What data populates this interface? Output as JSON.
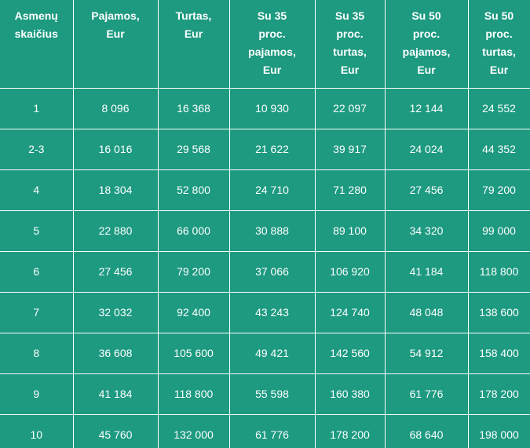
{
  "table": {
    "headers": [
      "Asmenų\nskaičius",
      "Pajamos,\nEur",
      "Turtas,\nEur",
      "Su 35\nproc.\npajamos,\nEur",
      "Su 35\nproc.\nturtas,\nEur",
      "Su 50\nproc.\npajamos,\nEur",
      "Su 50\nproc.\nturtas,\nEur"
    ],
    "rows": [
      [
        "1",
        "8 096",
        "16 368",
        "10 930",
        "22 097",
        "12 144",
        "24 552"
      ],
      [
        "2-3",
        "16 016",
        "29 568",
        "21 622",
        "39 917",
        "24 024",
        "44 352"
      ],
      [
        "4",
        "18 304",
        "52 800",
        "24 710",
        "71 280",
        "27 456",
        "79 200"
      ],
      [
        "5",
        "22 880",
        "66 000",
        "30 888",
        "89 100",
        "34 320",
        "99 000"
      ],
      [
        "6",
        "27 456",
        "79 200",
        "37 066",
        "106 920",
        "41 184",
        "118 800"
      ],
      [
        "7",
        "32 032",
        "92 400",
        "43 243",
        "124 740",
        "48 048",
        "138 600"
      ],
      [
        "8",
        "36 608",
        "105 600",
        "49 421",
        "142 560",
        "54 912",
        "158 400"
      ],
      [
        "9",
        "41 184",
        "118 800",
        "55 598",
        "160 380",
        "61 776",
        "178 200"
      ],
      [
        "10",
        "45 760",
        "132 000",
        "61 776",
        "178 200",
        "68 640",
        "198 000"
      ]
    ]
  },
  "colors": {
    "background": "#1d9a80",
    "text": "#ffffff",
    "grid": "#ffffff"
  }
}
